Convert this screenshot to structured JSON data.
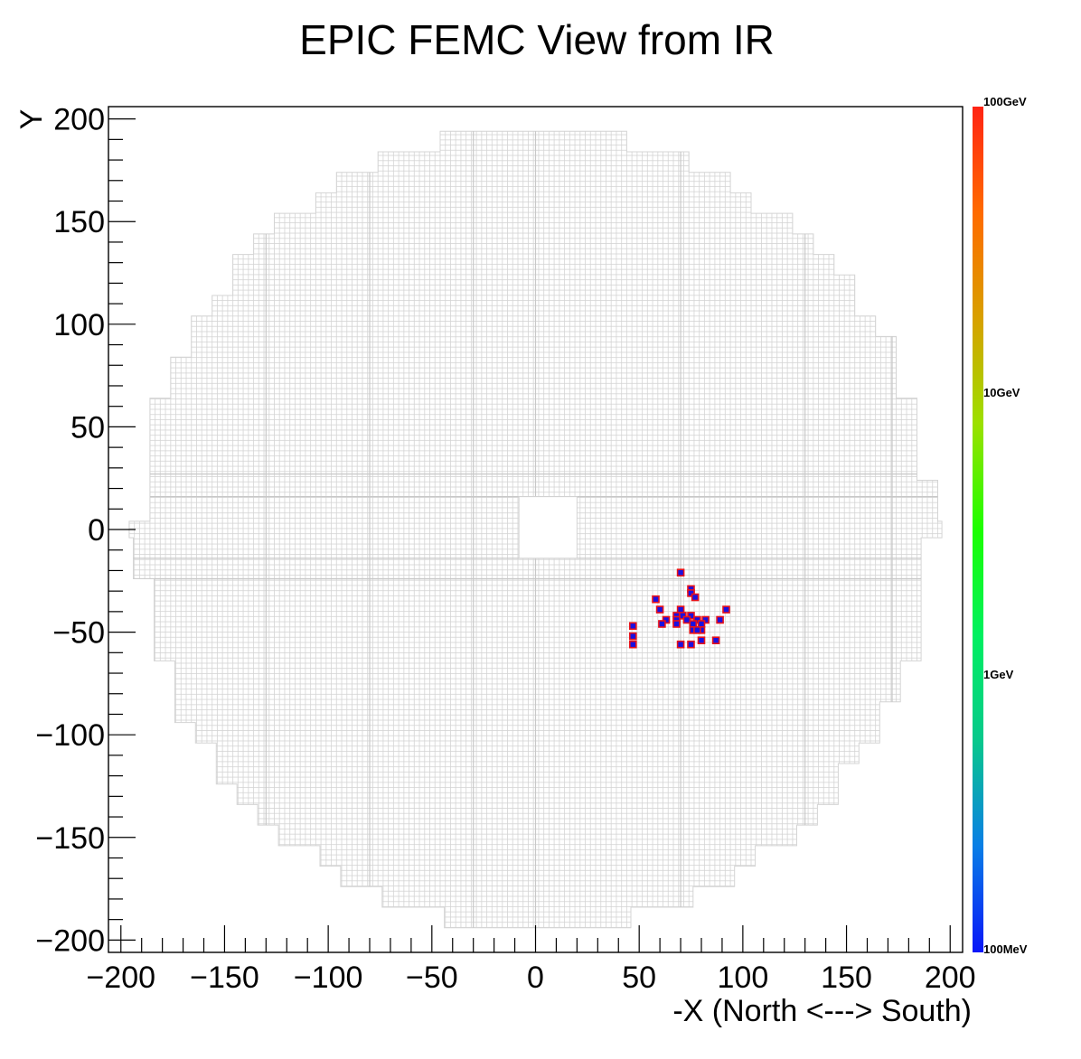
{
  "chart_data": {
    "type": "heatmap",
    "title": "EPIC FEMC View from IR",
    "xlabel": "-X (North <---> South)",
    "ylabel": "Y",
    "xlim": [
      -206,
      206
    ],
    "ylim": [
      -206,
      206
    ],
    "x_ticks": [
      {
        "value": -200,
        "label": "−200"
      },
      {
        "value": -150,
        "label": "−150"
      },
      {
        "value": -100,
        "label": "−100"
      },
      {
        "value": -50,
        "label": "−50"
      },
      {
        "value": 0,
        "label": "0"
      },
      {
        "value": 50,
        "label": "50"
      },
      {
        "value": 100,
        "label": "100"
      },
      {
        "value": 150,
        "label": "150"
      },
      {
        "value": 200,
        "label": "200"
      }
    ],
    "y_ticks": [
      {
        "value": 200,
        "label": "200"
      },
      {
        "value": 150,
        "label": "150"
      },
      {
        "value": 100,
        "label": "100"
      },
      {
        "value": 50,
        "label": "50"
      },
      {
        "value": 0,
        "label": "0"
      },
      {
        "value": -50,
        "label": "−50"
      },
      {
        "value": -100,
        "label": "−100"
      },
      {
        "value": -150,
        "label": "−150"
      },
      {
        "value": -200,
        "label": "−200"
      }
    ],
    "detector": {
      "cell_size": 2.5,
      "outer_radius": 196,
      "beam_hole": {
        "x": [
          -8,
          20
        ],
        "y": [
          -14,
          16
        ]
      },
      "grid_color": "#d4d4d4"
    },
    "hits": {
      "face_color": "#1a10e0",
      "edge_color": "#e8121a",
      "points": [
        [
          70,
          -21
        ],
        [
          75,
          -29
        ],
        [
          75,
          -31
        ],
        [
          77,
          -33
        ],
        [
          58,
          -34
        ],
        [
          60,
          -39
        ],
        [
          70,
          -39
        ],
        [
          92,
          -39
        ],
        [
          68,
          -42
        ],
        [
          71,
          -42
        ],
        [
          75,
          -42
        ],
        [
          68,
          -44
        ],
        [
          63,
          -44
        ],
        [
          73,
          -44
        ],
        [
          78,
          -44
        ],
        [
          82,
          -44
        ],
        [
          89,
          -44
        ],
        [
          61,
          -46
        ],
        [
          68,
          -46
        ],
        [
          76,
          -46
        ],
        [
          80,
          -46
        ],
        [
          47,
          -47
        ],
        [
          76,
          -49
        ],
        [
          80,
          -49
        ],
        [
          78,
          -49
        ],
        [
          47,
          -52
        ],
        [
          80,
          -54
        ],
        [
          87,
          -54
        ],
        [
          47,
          -56
        ],
        [
          70,
          -56
        ],
        [
          75,
          -56
        ]
      ]
    },
    "colorbar": {
      "scale": "log",
      "range": [
        "100MeV",
        "100GeV"
      ],
      "stops": [
        "#0a16f8",
        "#0a7ee6",
        "#08c88c",
        "#00f060",
        "#1cff00",
        "#9ce000",
        "#d8a000",
        "#ff6a00",
        "#ff2414"
      ],
      "labels": [
        {
          "fraction": 1.0,
          "text": "100GeV"
        },
        {
          "fraction": 0.6667,
          "text": "10GeV"
        },
        {
          "fraction": 0.3333,
          "text": "1GeV"
        },
        {
          "fraction": 0.0,
          "text": "100MeV"
        }
      ]
    },
    "grid": false,
    "legend": "none"
  }
}
